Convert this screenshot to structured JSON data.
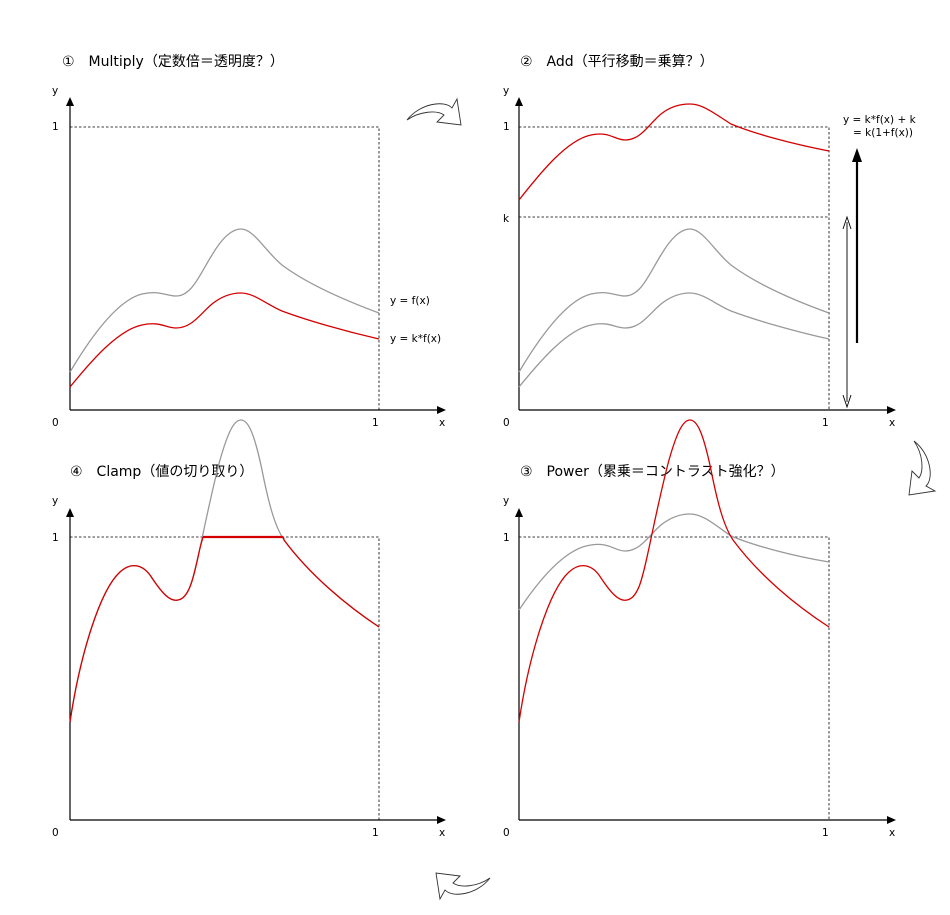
{
  "colors": {
    "original": "#999999",
    "transformed": "#d40000",
    "axis": "#000000"
  },
  "panels": [
    {
      "id": "multiply",
      "title": "①　Multiply（定数倍＝透明度？）",
      "x_label": "x",
      "y_label": "y",
      "origin_label": "0",
      "x_tick": "1",
      "y_tick": "1",
      "annotations": {
        "original": "y = f(x)",
        "transformed": "y = k*f(x)"
      }
    },
    {
      "id": "add",
      "title": "②　Add（平行移動＝乗算？）",
      "x_label": "x",
      "y_label": "y",
      "origin_label": "0",
      "x_tick": "1",
      "y_tick": "1",
      "k_tick": "k",
      "annotations": {
        "formula_line1": "y = k*f(x) + k",
        "formula_line2": "= k(1+f(x))"
      }
    },
    {
      "id": "power",
      "title": "③　Power（累乗＝コントラスト強化？）",
      "x_label": "x",
      "y_label": "y",
      "origin_label": "0",
      "x_tick": "1",
      "y_tick": "1"
    },
    {
      "id": "clamp",
      "title": "④　Clamp（値の切り取り）",
      "x_label": "x",
      "y_label": "y",
      "origin_label": "0",
      "x_tick": "1",
      "y_tick": "1"
    }
  ],
  "cycle_arrows": [
    "curved-arrow-right",
    "curved-arrow-down",
    "curved-arrow-left"
  ]
}
